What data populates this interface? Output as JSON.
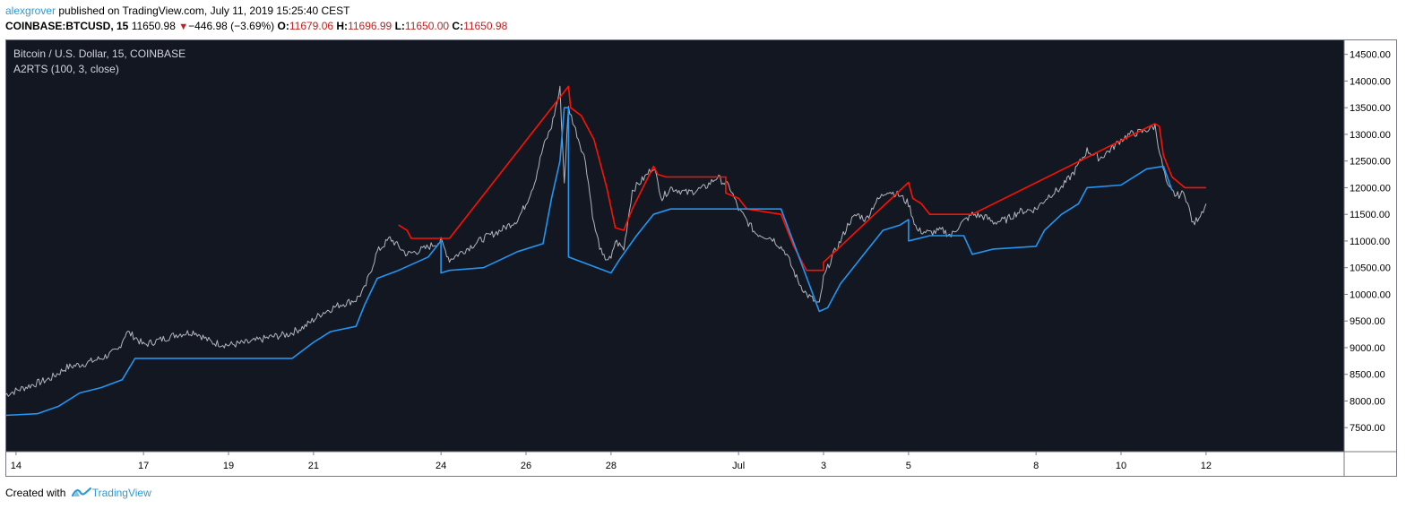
{
  "header": {
    "author": "alexgrover",
    "published": "published on TradingView.com, July 11, 2019 15:25:40 CEST",
    "symbol": "COINBASE:BTCUSD, 15",
    "last": "11650.98",
    "change": "−446.98 (−3.69%)",
    "open_label": "O:",
    "open": "11679.06",
    "high_label": "H:",
    "high": "11696.99",
    "low_label": "L:",
    "low": "11650.00",
    "close_label": "C:",
    "close": "11650.98"
  },
  "footer": {
    "created_with": "Created with",
    "brand": "TradingView"
  },
  "icons": {
    "change_arrow": "down-triangle-icon",
    "logo": "tradingview-logo-icon"
  },
  "chart_data": {
    "type": "line",
    "title": "Bitcoin / U.S. Dollar, 15, COINBASE",
    "indicator": "A2RTS (100, 3, close)",
    "xlabel": "",
    "ylabel": "",
    "x_tick_labels": [
      {
        "t": 0,
        "label": "14"
      },
      {
        "t": 3,
        "label": "17"
      },
      {
        "t": 5,
        "label": "19"
      },
      {
        "t": 7,
        "label": "21"
      },
      {
        "t": 10,
        "label": "24"
      },
      {
        "t": 12,
        "label": "26"
      },
      {
        "t": 14,
        "label": "28"
      },
      {
        "t": 17,
        "label": "Jul"
      },
      {
        "t": 19,
        "label": "3"
      },
      {
        "t": 21,
        "label": "5"
      },
      {
        "t": 24,
        "label": "8"
      },
      {
        "t": 26,
        "label": "10"
      },
      {
        "t": 28,
        "label": "12"
      }
    ],
    "y_ticks": [
      7500,
      8000,
      8500,
      9000,
      9500,
      10000,
      10500,
      11000,
      11500,
      12000,
      12500,
      13000,
      13500,
      14000,
      14500
    ],
    "y_tick_labels": [
      "7500.00",
      "8000.00",
      "8500.00",
      "9000.00",
      "9500.00",
      "10000.00",
      "10500.00",
      "11000.00",
      "11500.00",
      "12000.00",
      "12500.00",
      "13000.00",
      "13500.00",
      "14000.00",
      "14500.00"
    ],
    "xlim": [
      -0.25,
      31.25
    ],
    "ylim": [
      7050,
      14780
    ],
    "last_price": 11650.98,
    "colors": {
      "background": "#131722",
      "price": "#b2b5be",
      "upper": "#ff1100",
      "lower": "#2196f3",
      "axis_text": "#000000"
    },
    "grid": false,
    "series": [
      {
        "role": "price",
        "points": [
          [
            -0.25,
            8120
          ],
          [
            0.3,
            8280
          ],
          [
            0.8,
            8420
          ],
          [
            1.2,
            8630
          ],
          [
            1.6,
            8700
          ],
          [
            2.0,
            8800
          ],
          [
            2.4,
            8950
          ],
          [
            2.6,
            9300
          ],
          [
            2.8,
            9200
          ],
          [
            3.0,
            9050
          ],
          [
            3.4,
            9150
          ],
          [
            3.8,
            9250
          ],
          [
            4.2,
            9300
          ],
          [
            4.6,
            9100
          ],
          [
            5.0,
            9050
          ],
          [
            5.5,
            9100
          ],
          [
            6.0,
            9200
          ],
          [
            6.4,
            9250
          ],
          [
            6.8,
            9400
          ],
          [
            7.2,
            9650
          ],
          [
            7.6,
            9800
          ],
          [
            8.0,
            9900
          ],
          [
            8.2,
            10100
          ],
          [
            8.5,
            10800
          ],
          [
            8.8,
            11050
          ],
          [
            9.0,
            10900
          ],
          [
            9.2,
            10750
          ],
          [
            9.6,
            10850
          ],
          [
            10.0,
            11000
          ],
          [
            10.2,
            10650
          ],
          [
            10.6,
            10850
          ],
          [
            11.0,
            11050
          ],
          [
            11.4,
            11200
          ],
          [
            11.8,
            11400
          ],
          [
            12.0,
            11700
          ],
          [
            12.2,
            12100
          ],
          [
            12.4,
            12750
          ],
          [
            12.6,
            13150
          ],
          [
            12.8,
            13850
          ],
          [
            12.9,
            12100
          ],
          [
            13.0,
            13500
          ],
          [
            13.2,
            13000
          ],
          [
            13.4,
            12500
          ],
          [
            13.6,
            11300
          ],
          [
            13.8,
            10700
          ],
          [
            14.0,
            10650
          ],
          [
            14.1,
            11000
          ],
          [
            14.3,
            10850
          ],
          [
            14.5,
            11950
          ],
          [
            14.8,
            12200
          ],
          [
            15.0,
            12400
          ],
          [
            15.2,
            11800
          ],
          [
            15.4,
            12000
          ],
          [
            15.8,
            11900
          ],
          [
            16.2,
            12000
          ],
          [
            16.5,
            12200
          ],
          [
            16.8,
            12000
          ],
          [
            17.0,
            11600
          ],
          [
            17.4,
            11150
          ],
          [
            17.8,
            11050
          ],
          [
            18.1,
            10800
          ],
          [
            18.4,
            10250
          ],
          [
            18.6,
            10000
          ],
          [
            18.9,
            9800
          ],
          [
            19.0,
            10300
          ],
          [
            19.2,
            10700
          ],
          [
            19.4,
            11000
          ],
          [
            19.6,
            11350
          ],
          [
            19.8,
            11500
          ],
          [
            20.0,
            11400
          ],
          [
            20.2,
            11700
          ],
          [
            20.5,
            11950
          ],
          [
            20.8,
            11850
          ],
          [
            21.0,
            11700
          ],
          [
            21.2,
            11200
          ],
          [
            21.5,
            11150
          ],
          [
            21.8,
            11200
          ],
          [
            22.0,
            11100
          ],
          [
            22.2,
            11300
          ],
          [
            22.5,
            11500
          ],
          [
            22.8,
            11450
          ],
          [
            23.0,
            11350
          ],
          [
            23.3,
            11400
          ],
          [
            23.6,
            11550
          ],
          [
            24.0,
            11600
          ],
          [
            24.3,
            11850
          ],
          [
            24.6,
            12000
          ],
          [
            24.9,
            12300
          ],
          [
            25.2,
            12700
          ],
          [
            25.5,
            12550
          ],
          [
            25.8,
            12750
          ],
          [
            26.0,
            12900
          ],
          [
            26.2,
            13000
          ],
          [
            26.5,
            13050
          ],
          [
            26.8,
            13150
          ],
          [
            26.95,
            12500
          ],
          [
            27.1,
            12000
          ],
          [
            27.3,
            11850
          ],
          [
            27.5,
            11900
          ],
          [
            27.7,
            11300
          ],
          [
            27.9,
            11550
          ],
          [
            28.0,
            11700
          ]
        ]
      },
      {
        "role": "upper",
        "points": [
          [
            9.0,
            11300
          ],
          [
            9.2,
            11200
          ],
          [
            9.3,
            11050
          ],
          [
            10.0,
            11050
          ],
          [
            10.2,
            11050
          ],
          [
            13.0,
            13900
          ],
          [
            13.05,
            13500
          ],
          [
            13.3,
            13350
          ],
          [
            13.6,
            12900
          ],
          [
            13.9,
            12000
          ],
          [
            14.1,
            11250
          ],
          [
            14.3,
            11200
          ],
          [
            14.45,
            11500
          ],
          [
            14.5,
            11600
          ],
          [
            15.0,
            12400
          ],
          [
            15.1,
            12250
          ],
          [
            15.3,
            12200
          ],
          [
            16.0,
            12200
          ],
          [
            16.7,
            12200
          ],
          [
            16.7,
            11900
          ],
          [
            17.0,
            11800
          ],
          [
            17.2,
            11600
          ],
          [
            18.0,
            11500
          ],
          [
            18.3,
            10900
          ],
          [
            18.6,
            10450
          ],
          [
            19.0,
            10450
          ],
          [
            19.0,
            10600
          ],
          [
            21.0,
            12100
          ],
          [
            21.1,
            11800
          ],
          [
            21.3,
            11700
          ],
          [
            21.5,
            11500
          ],
          [
            22.5,
            11500
          ],
          [
            26.8,
            13200
          ],
          [
            26.9,
            13150
          ],
          [
            27.0,
            12600
          ],
          [
            27.2,
            12200
          ],
          [
            27.5,
            12000
          ],
          [
            28.0,
            12000
          ]
        ]
      },
      {
        "role": "lower",
        "points": [
          [
            -0.25,
            7730
          ],
          [
            0.5,
            7760
          ],
          [
            1.0,
            7900
          ],
          [
            1.5,
            8150
          ],
          [
            2.0,
            8250
          ],
          [
            2.5,
            8400
          ],
          [
            2.8,
            8800
          ],
          [
            6.5,
            8800
          ],
          [
            7.0,
            9100
          ],
          [
            7.4,
            9300
          ],
          [
            8.0,
            9400
          ],
          [
            8.2,
            9800
          ],
          [
            8.5,
            10300
          ],
          [
            9.0,
            10450
          ],
          [
            9.7,
            10700
          ],
          [
            10.0,
            11000
          ],
          [
            10.0,
            10400
          ],
          [
            10.2,
            10450
          ],
          [
            11.0,
            10500
          ],
          [
            11.4,
            10650
          ],
          [
            11.8,
            10800
          ],
          [
            12.4,
            10950
          ],
          [
            12.6,
            11800
          ],
          [
            12.8,
            12500
          ],
          [
            12.9,
            13500
          ],
          [
            13.0,
            13500
          ],
          [
            13.0,
            10700
          ],
          [
            14.0,
            10400
          ],
          [
            14.2,
            10650
          ],
          [
            14.6,
            11100
          ],
          [
            15.0,
            11500
          ],
          [
            15.4,
            11600
          ],
          [
            16.0,
            11600
          ],
          [
            17.0,
            11600
          ],
          [
            18.0,
            11600
          ],
          [
            18.9,
            9680
          ],
          [
            19.1,
            9750
          ],
          [
            19.4,
            10200
          ],
          [
            19.6,
            10400
          ],
          [
            20.0,
            10800
          ],
          [
            20.4,
            11200
          ],
          [
            20.8,
            11300
          ],
          [
            21.0,
            11400
          ],
          [
            21.0,
            11000
          ],
          [
            21.5,
            11100
          ],
          [
            22.3,
            11100
          ],
          [
            22.5,
            10750
          ],
          [
            23.0,
            10850
          ],
          [
            24.0,
            10900
          ],
          [
            24.2,
            11200
          ],
          [
            24.6,
            11500
          ],
          [
            25.0,
            11700
          ],
          [
            25.2,
            12000
          ],
          [
            26.0,
            12050
          ],
          [
            26.6,
            12350
          ],
          [
            27.0,
            12400
          ],
          [
            27.2,
            11950
          ]
        ]
      }
    ]
  }
}
